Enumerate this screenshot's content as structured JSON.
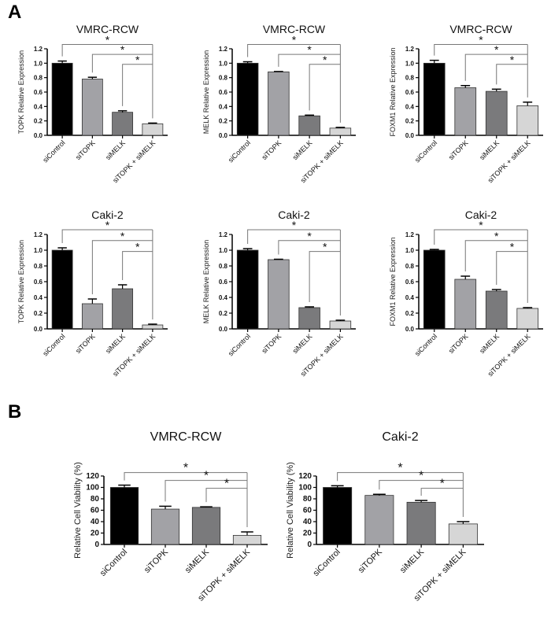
{
  "panels": [
    "A",
    "B"
  ],
  "chart_data": [
    {
      "type": "bar",
      "panel": "A",
      "title": "VMRC-RCW",
      "ylabel": "TOPK Relative Expression",
      "categories": [
        "siControl",
        "siTOPK",
        "siMELK",
        "siTOPK + siMELK"
      ],
      "values": [
        1.0,
        0.78,
        0.32,
        0.16
      ],
      "errors": [
        0.03,
        0.025,
        0.02,
        0.01
      ],
      "ylim": [
        0,
        1.2
      ],
      "yticks": [
        "0.0",
        "0.2",
        "0.4",
        "0.6",
        "0.8",
        "1.0",
        "1.2"
      ],
      "significance": [
        "*",
        "*",
        "*"
      ]
    },
    {
      "type": "bar",
      "panel": "A",
      "title": "VMRC-RCW",
      "ylabel": "MELK Relative Expression",
      "categories": [
        "siControl",
        "siTOPK",
        "siMELK",
        "siTOPK + siMELK"
      ],
      "values": [
        1.0,
        0.88,
        0.27,
        0.1
      ],
      "errors": [
        0.02,
        0.005,
        0.01,
        0.01
      ],
      "ylim": [
        0,
        1.2
      ],
      "yticks": [
        "0.0",
        "0.2",
        "0.4",
        "0.6",
        "0.8",
        "1.0",
        "1.2"
      ],
      "significance": [
        "*",
        "*",
        "*"
      ]
    },
    {
      "type": "bar",
      "panel": "A",
      "title": "VMRC-RCW",
      "ylabel": "FOXM1 Relative Expression",
      "categories": [
        "siControl",
        "siTOPK",
        "siMELK",
        "siTOPK + siMELK"
      ],
      "values": [
        1.0,
        0.66,
        0.61,
        0.41
      ],
      "errors": [
        0.04,
        0.03,
        0.03,
        0.05
      ],
      "ylim": [
        0,
        1.2
      ],
      "yticks": [
        "0.0",
        "0.2",
        "0.4",
        "0.6",
        "0.8",
        "1.0",
        "1.2"
      ],
      "significance": [
        "*",
        "*",
        "*"
      ]
    },
    {
      "type": "bar",
      "panel": "A",
      "title": "Caki-2",
      "ylabel": "TOPK Relative Expression",
      "categories": [
        "siControl",
        "siTOPK",
        "siMELK",
        "siTOPK + siMELK"
      ],
      "values": [
        1.0,
        0.32,
        0.51,
        0.05
      ],
      "errors": [
        0.03,
        0.06,
        0.05,
        0.01
      ],
      "ylim": [
        0,
        1.2
      ],
      "yticks": [
        "0.0",
        "0.2",
        "0.4",
        "0.6",
        "0.8",
        "1.0",
        "1.2"
      ],
      "significance": [
        "*",
        "*",
        "*"
      ]
    },
    {
      "type": "bar",
      "panel": "A",
      "title": "Caki-2",
      "ylabel": "MELK Relative Expression",
      "categories": [
        "siControl",
        "siTOPK",
        "siMELK",
        "siTOPK + siMELK"
      ],
      "values": [
        1.0,
        0.88,
        0.27,
        0.1
      ],
      "errors": [
        0.02,
        0.005,
        0.01,
        0.01
      ],
      "ylim": [
        0,
        1.2
      ],
      "yticks": [
        "0.0",
        "0.2",
        "0.4",
        "0.6",
        "0.8",
        "1.0",
        "1.2"
      ],
      "significance": [
        "*",
        "*",
        "*"
      ]
    },
    {
      "type": "bar",
      "panel": "A",
      "title": "Caki-2",
      "ylabel": "FOXM1 Relative Expression",
      "categories": [
        "siControl",
        "siTOPK",
        "siMELK",
        "siTOPK + siMELK"
      ],
      "values": [
        1.0,
        0.63,
        0.48,
        0.26
      ],
      "errors": [
        0.01,
        0.04,
        0.02,
        0.01
      ],
      "ylim": [
        0,
        1.2
      ],
      "yticks": [
        "0.0",
        "0.2",
        "0.4",
        "0.6",
        "0.8",
        "1.0",
        "1.2"
      ],
      "significance": [
        "*",
        "*",
        "*"
      ]
    },
    {
      "type": "bar",
      "panel": "B",
      "title": "VMRC-RCW",
      "ylabel": "Relative Cell Viability (%)",
      "categories": [
        "siControl",
        "siTOPK",
        "siMELK",
        "siTOPK + siMELK"
      ],
      "values": [
        100,
        62,
        65,
        16
      ],
      "errors": [
        4,
        5,
        1,
        6
      ],
      "ylim": [
        0,
        120
      ],
      "yticks": [
        "0",
        "20",
        "40",
        "60",
        "80",
        "100",
        "120"
      ],
      "significance": [
        "*",
        "*",
        "*"
      ]
    },
    {
      "type": "bar",
      "panel": "B",
      "title": "Caki-2",
      "ylabel": "Relative Cell Viability (%)",
      "categories": [
        "siControl",
        "siTOPK",
        "siMELK",
        "siTOPK + siMELK"
      ],
      "values": [
        100,
        86,
        74,
        36
      ],
      "errors": [
        3,
        2,
        3,
        4
      ],
      "ylim": [
        0,
        120
      ],
      "yticks": [
        "0",
        "20",
        "40",
        "60",
        "80",
        "100",
        "120"
      ],
      "significance": [
        "*",
        "*",
        "*"
      ]
    }
  ],
  "bar_colors": [
    "#000000",
    "#a2a2a6",
    "#7a7a7c",
    "#d6d6d6"
  ]
}
